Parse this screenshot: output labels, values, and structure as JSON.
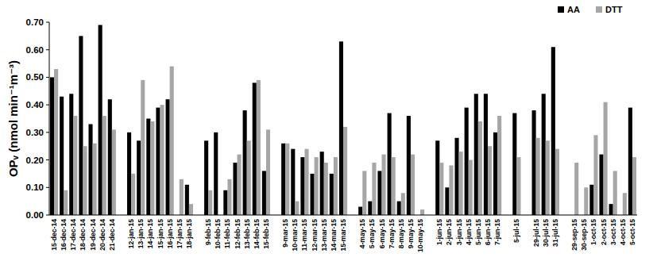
{
  "chart_data": {
    "type": "bar",
    "y_label": "OPᵥ (nmol min⁻¹m⁻³)",
    "categories": [
      "15-dec-14",
      "16-dec-14",
      "17-dec-14",
      "18-dec-14",
      "19-dec-14",
      "20-dec-14",
      "21-dec-14",
      null,
      "12-jan-15",
      "13-jan-15",
      "14-jan-15",
      "15-jan-15",
      "16-jan-15",
      "17-jan-15",
      "18-jan-15",
      null,
      "9-feb-15",
      "10-feb-15",
      "11-feb-15",
      "12-feb-15",
      "13-feb-15",
      "14-feb-15",
      "15-feb-15",
      null,
      "9-mar-15",
      "10-mar-15",
      "11-mar-15",
      "12-mar-15",
      "13-mar-15",
      "14-mar-15",
      "15-mar-15",
      null,
      "4-may-15",
      "5-may-15",
      "6-may-15",
      "7-may-15",
      "8-may-15",
      "9-may-15",
      "10-may-15",
      null,
      "1-jun-15",
      "2-jun-15",
      "3-jun-15",
      "4-jun-15",
      "5-jun-15",
      "6-jun-15",
      "7-jun-15",
      null,
      "5-jul-15",
      null,
      "29-jul-15",
      "30-jul-15",
      "31-jul-15",
      null,
      "29-sep-15",
      "30-sep-15",
      "1-oct-15",
      "2-oct-15",
      "3-oct-15",
      "4-oct-15",
      "5-oct-15"
    ],
    "series": [
      {
        "name": "AA",
        "color": "#000000",
        "values": [
          0.5,
          0.43,
          0.44,
          0.65,
          0.33,
          0.69,
          0.42,
          null,
          0.3,
          0.27,
          0.35,
          0.39,
          0.42,
          null,
          0.11,
          null,
          0.27,
          0.3,
          0.09,
          0.19,
          0.38,
          0.48,
          0.16,
          null,
          0.26,
          0.24,
          0.21,
          0.15,
          0.23,
          0.15,
          0.63,
          null,
          0.03,
          0.05,
          0.16,
          0.37,
          0.05,
          0.36,
          null,
          null,
          0.27,
          0.1,
          0.28,
          0.39,
          0.44,
          0.44,
          0.3,
          null,
          0.37,
          null,
          0.38,
          0.44,
          0.61,
          null,
          null,
          null,
          0.11,
          0.22,
          0.04,
          null,
          0.39
        ]
      },
      {
        "name": "DTT",
        "color": "#a6a6a6",
        "values": [
          0.53,
          0.09,
          0.36,
          0.25,
          0.26,
          0.36,
          0.31,
          null,
          0.15,
          0.49,
          0.34,
          0.4,
          0.54,
          0.13,
          0.04,
          null,
          0.09,
          null,
          0.13,
          0.22,
          0.27,
          0.49,
          0.31,
          null,
          0.26,
          0.05,
          0.24,
          0.21,
          0.19,
          0.21,
          0.32,
          null,
          0.16,
          0.19,
          0.22,
          0.21,
          0.08,
          0.22,
          0.02,
          null,
          0.19,
          0.18,
          0.23,
          0.2,
          0.34,
          0.25,
          0.36,
          null,
          0.21,
          null,
          0.28,
          0.27,
          0.24,
          null,
          0.19,
          0.1,
          0.29,
          0.41,
          0.16,
          0.08,
          0.21
        ]
      }
    ],
    "ylim": [
      0,
      0.7
    ],
    "yticks": [
      {
        "value": 0,
        "label": "0.00"
      },
      {
        "value": 0.1,
        "label": "0.10"
      },
      {
        "value": 0.2,
        "label": "0.20"
      },
      {
        "value": 0.3,
        "label": "0.30"
      },
      {
        "value": 0.4,
        "label": "0.40"
      },
      {
        "value": 0.5,
        "label": "0.50"
      },
      {
        "value": 0.6,
        "label": "0.60"
      },
      {
        "value": 0.7,
        "label": "0.70"
      }
    ],
    "grid": false,
    "legend": "upper right"
  }
}
